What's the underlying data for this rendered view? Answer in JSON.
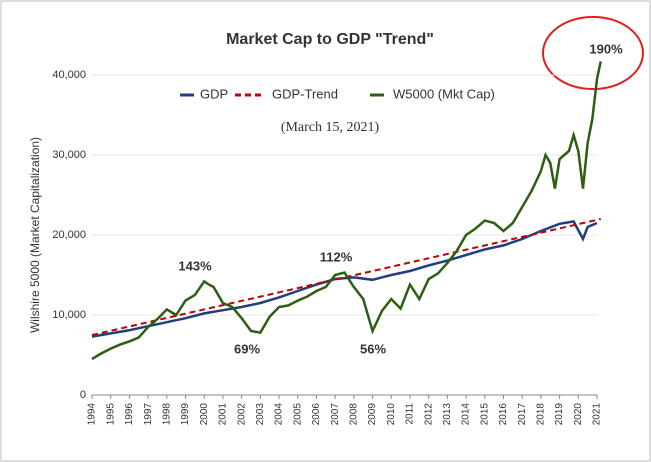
{
  "chart_data": {
    "type": "line",
    "title": "Market Cap to GDP \"Trend\"",
    "subtitle": "(March 15, 2021)",
    "y_label": "Wilshire 5000   (Market Capitalization)",
    "series": [
      {
        "name": "GDP",
        "color": "#1f3f7f",
        "dash": false,
        "x": [
          1994,
          1995,
          1996,
          1997,
          1998,
          1999,
          2000,
          2001,
          2002,
          2003,
          2004,
          2005,
          2006,
          2007,
          2008,
          2009,
          2010,
          2011,
          2012,
          2013,
          2014,
          2015,
          2016,
          2017,
          2018,
          2019,
          2019.75,
          2020.25,
          2020.5,
          2021
        ],
        "values": [
          7300,
          7700,
          8100,
          8600,
          9100,
          9600,
          10200,
          10600,
          11000,
          11500,
          12200,
          13000,
          13800,
          14500,
          14700,
          14400,
          15000,
          15500,
          16200,
          16800,
          17500,
          18200,
          18700,
          19500,
          20500,
          21400,
          21700,
          19500,
          21000,
          21500
        ]
      },
      {
        "name": "GDP-Trend",
        "color": "#c00000",
        "dash": true,
        "x": [
          1994,
          2021.2
        ],
        "values": [
          7500,
          22000
        ]
      },
      {
        "name": "W5000 (Mkt Cap)",
        "color": "#2e5e14",
        "dash": false,
        "x": [
          1994,
          1994.5,
          1995,
          1995.5,
          1996,
          1996.5,
          1997,
          1997.5,
          1998,
          1998.5,
          1999,
          1999.5,
          2000,
          2000.25,
          2000.5,
          2001,
          2001.5,
          2002,
          2002.5,
          2003,
          2003.5,
          2004,
          2004.5,
          2005,
          2005.5,
          2006,
          2006.5,
          2007,
          2007.5,
          2008,
          2008.5,
          2009,
          2009.5,
          2010,
          2010.5,
          2011,
          2011.5,
          2012,
          2012.5,
          2013,
          2013.5,
          2014,
          2014.5,
          2015,
          2015.5,
          2016,
          2016.5,
          2017,
          2017.5,
          2018,
          2018.25,
          2018.5,
          2018.75,
          2019,
          2019.5,
          2019.75,
          2020,
          2020.25,
          2020.5,
          2020.75,
          2021,
          2021.2
        ],
        "values": [
          4500,
          5200,
          5800,
          6300,
          6700,
          7200,
          8500,
          9500,
          10700,
          10000,
          11800,
          12500,
          14200,
          13800,
          13500,
          11500,
          11000,
          9600,
          8000,
          7800,
          9800,
          11000,
          11200,
          11800,
          12300,
          13000,
          13500,
          15000,
          15300,
          13500,
          12000,
          8000,
          10500,
          12000,
          10800,
          13800,
          12000,
          14500,
          15200,
          16500,
          18000,
          20000,
          20800,
          21800,
          21500,
          20500,
          21500,
          23500,
          25500,
          28000,
          30000,
          29000,
          25800,
          29500,
          30500,
          32500,
          30500,
          25800,
          31500,
          34500,
          39500,
          41700
        ]
      }
    ],
    "annotations": [
      "143%",
      "69%",
      "112%",
      "56%",
      "190%"
    ],
    "xlim": [
      1994,
      2021
    ],
    "xticks": [
      1994,
      1995,
      1996,
      1997,
      1998,
      1999,
      2000,
      2001,
      2002,
      2003,
      2004,
      2005,
      2006,
      2007,
      2008,
      2009,
      2010,
      2011,
      2012,
      2013,
      2014,
      2015,
      2016,
      2017,
      2018,
      2019,
      2020,
      2021
    ],
    "ylim": [
      0,
      40000
    ],
    "yticks": [
      0,
      {
        "value": 10000,
        "label": "10,000"
      },
      {
        "value": 20000,
        "label": "20,000"
      },
      {
        "value": 30000,
        "label": "30,000"
      },
      {
        "value": 40000,
        "label": "40,000"
      }
    ],
    "grid": true
  }
}
